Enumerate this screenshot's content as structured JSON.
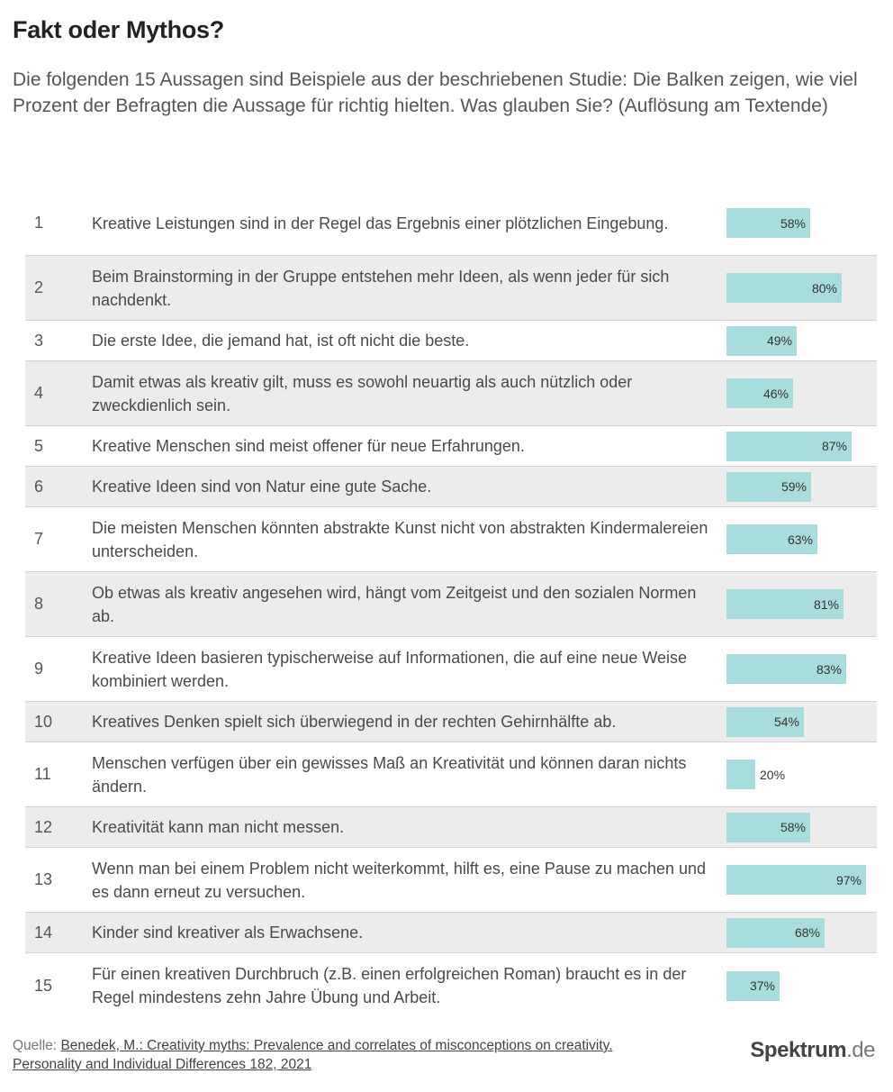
{
  "title": "Fakt oder Mythos?",
  "subtitle": "Die folgenden 15 Aussagen sind Beispiele aus der beschriebenen Studie: Die Balken zeigen, wie viel Prozent der Befragten die Aussage für richtig hielten. Was glauben Sie? (Auflösung am Textende)",
  "colors": {
    "bar": "#a9dcdc",
    "row_alt": "#ececec"
  },
  "chart_data": {
    "type": "bar",
    "orientation": "horizontal",
    "xlim": [
      0,
      100
    ],
    "unit": "%",
    "categories": [
      "Kreative Leistungen sind in der Regel das Ergebnis einer plötzlichen Eingebung.",
      "Beim Brainstorming in der Gruppe entstehen mehr Ideen, als wenn jeder für sich nachdenkt.",
      "Die erste Idee, die jemand hat, ist oft nicht die beste.",
      "Damit etwas als kreativ gilt, muss es sowohl neuartig als auch nützlich oder zweckdienlich sein.",
      "Kreative Menschen sind meist offener für neue Erfahrungen.",
      "Kreative Ideen sind von Natur eine gute Sache.",
      "Die meisten Menschen könnten abstrakte Kunst nicht von abstrakten Kindermalereien unterscheiden.",
      "Ob etwas als kreativ angesehen wird, hängt vom Zeitgeist und den sozialen Normen ab.",
      "Kreative Ideen basieren typischerweise auf Informationen, die auf eine neue Weise kombiniert werden.",
      "Kreatives Denken spielt sich überwiegend in der rechten Gehirnhälfte ab.",
      "Menschen verfügen über ein gewisses Maß an Kreativität und können daran nichts ändern.",
      "Kreativität kann man nicht messen.",
      "Wenn man bei einem Problem nicht weiterkommt, hilft es, eine Pause zu machen und es dann erneut zu versuchen.",
      "Kinder sind kreativer als Erwachsene.",
      "Für einen kreativen Durchbruch (z.B. einen erfolgreichen Roman) braucht es in der Regel mindestens zehn Jahre Übung und Arbeit."
    ],
    "numbers": [
      "1",
      "2",
      "3",
      "4",
      "5",
      "6",
      "7",
      "8",
      "9",
      "10",
      "11",
      "12",
      "13",
      "14",
      "15"
    ],
    "values": [
      58,
      80,
      49,
      46,
      87,
      59,
      63,
      81,
      83,
      54,
      20,
      58,
      97,
      68,
      37
    ],
    "labels": [
      "58%",
      "80%",
      "49%",
      "46%",
      "87%",
      "59%",
      "63%",
      "81%",
      "83%",
      "54%",
      "20%",
      "58%",
      "97%",
      "68%",
      "37%"
    ]
  },
  "source": {
    "prefix": "Quelle:",
    "citation_line1": "Benedek, M.: Creativity myths: Prevalence and correlates of misconceptions on creativity.",
    "citation_line2": "Personality and Individual Differences 182, 2021"
  },
  "brand": {
    "name": "Spektrum",
    "suffix": ".de"
  }
}
